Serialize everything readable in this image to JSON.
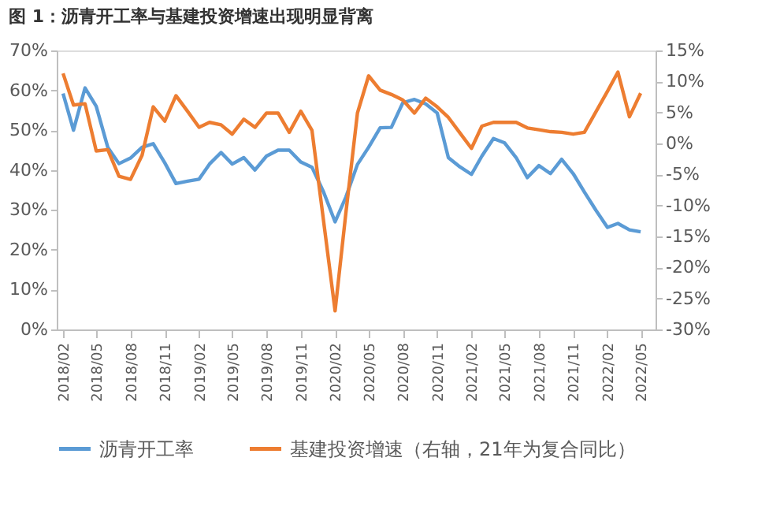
{
  "chart_data": {
    "type": "line",
    "title": "图 1：沥青开工率与基建投资增速出现明显背离",
    "xlim": [
      "2018-01-15",
      "2022-06-10"
    ],
    "xticks": [
      {
        "value": "2018-02",
        "label": "2018/02"
      },
      {
        "value": "2018-05",
        "label": "2018/05"
      },
      {
        "value": "2018-08",
        "label": "2018/08"
      },
      {
        "value": "2018-11",
        "label": "2018/11"
      },
      {
        "value": "2019-02",
        "label": "2019/02"
      },
      {
        "value": "2019-05",
        "label": "2019/05"
      },
      {
        "value": "2019-08",
        "label": "2019/08"
      },
      {
        "value": "2019-11",
        "label": "2019/11"
      },
      {
        "value": "2020-02",
        "label": "2020/02"
      },
      {
        "value": "2020-05",
        "label": "2020/05"
      },
      {
        "value": "2020-08",
        "label": "2020/08"
      },
      {
        "value": "2020-11",
        "label": "2020/11"
      },
      {
        "value": "2021-02",
        "label": "2021/02"
      },
      {
        "value": "2021-05",
        "label": "2021/05"
      },
      {
        "value": "2021-08",
        "label": "2021/08"
      },
      {
        "value": "2021-11",
        "label": "2021/11"
      },
      {
        "value": "2022-02",
        "label": "2022/02"
      },
      {
        "value": "2022-05",
        "label": "2022/05"
      }
    ],
    "ylim": [
      0,
      70
    ],
    "yticks": [
      {
        "value": 0,
        "label": "0%"
      },
      {
        "value": 10,
        "label": "10%"
      },
      {
        "value": 20,
        "label": "20%"
      },
      {
        "value": 30,
        "label": "30%"
      },
      {
        "value": 40,
        "label": "40%"
      },
      {
        "value": 50,
        "label": "50%"
      },
      {
        "value": 60,
        "label": "60%"
      },
      {
        "value": 70,
        "label": "70%"
      }
    ],
    "y2lim": [
      -30,
      15
    ],
    "y2ticks": [
      {
        "value": -30,
        "label": "-30%"
      },
      {
        "value": -25,
        "label": "-25%"
      },
      {
        "value": -20,
        "label": "-20%"
      },
      {
        "value": -15,
        "label": "-15%"
      },
      {
        "value": -10,
        "label": "-10%"
      },
      {
        "value": -5,
        "label": "-5%"
      },
      {
        "value": 0,
        "label": "0%"
      },
      {
        "value": 5,
        "label": "5%"
      },
      {
        "value": 10,
        "label": "10%"
      },
      {
        "value": 15,
        "label": "15%"
      }
    ],
    "legend": "bottom",
    "grid": false,
    "marker": "none",
    "line_style": "solid",
    "series": [
      {
        "name": "沥青开工率",
        "color": "#5b9bd5",
        "x": [
          "2018-02",
          "2018-03",
          "2018-04",
          "2018-05",
          "2018-06",
          "2018-07",
          "2018-08",
          "2018-09",
          "2018-10",
          "2018-11",
          "2018-12",
          "2019-01",
          "2019-02",
          "2019-03",
          "2019-04",
          "2019-05",
          "2019-06",
          "2019-07",
          "2019-08",
          "2019-09",
          "2019-10",
          "2019-11",
          "2019-12",
          "2020-01",
          "2020-02",
          "2020-03",
          "2020-04",
          "2020-05",
          "2020-06",
          "2020-07",
          "2020-08",
          "2020-09",
          "2020-10",
          "2020-11",
          "2020-12",
          "2021-01",
          "2021-02",
          "2021-03",
          "2021-04",
          "2021-05",
          "2021-06",
          "2021-07",
          "2021-08",
          "2021-09",
          "2021-10",
          "2021-11",
          "2021-12",
          "2022-01",
          "2022-02",
          "2022-03",
          "2022-04",
          "2022-05"
        ],
        "values": [
          59.2,
          50,
          60.6,
          56,
          45.7,
          41.6,
          43,
          45.7,
          46.6,
          41.8,
          36.6,
          37.2,
          37.7,
          41.5,
          44.4,
          41.5,
          43.1,
          40,
          43.5,
          45,
          45,
          42,
          40.7,
          34.5,
          27,
          33.2,
          41.4,
          45.7,
          50.6,
          50.7,
          56.9,
          57.7,
          56.6,
          54.3,
          43.1,
          40.8,
          38.9,
          43.5,
          47.9,
          46.8,
          43.1,
          38.1,
          41.1,
          39.1,
          42.7,
          39.1,
          34.5,
          29.9,
          25.6,
          26.6,
          25,
          24.5
        ]
      },
      {
        "name": "基建投资增速（右轴，21年为复合同比）",
        "color": "#ed7d31",
        "axis": "y2",
        "x": [
          "2018-02",
          "2018-03",
          "2018-04",
          "2018-05",
          "2018-06",
          "2018-07",
          "2018-08",
          "2018-09",
          "2018-10",
          "2018-11",
          "2018-12",
          "2019-01",
          "2019-02",
          "2019-03",
          "2019-04",
          "2019-05",
          "2019-06",
          "2019-07",
          "2019-08",
          "2019-09",
          "2019-10",
          "2019-11",
          "2019-12",
          "2020-02",
          "2020-03",
          "2020-04",
          "2020-05",
          "2020-06",
          "2020-07",
          "2020-08",
          "2020-09",
          "2020-10",
          "2020-11",
          "2020-12",
          "2021-01",
          "2021-02",
          "2021-03",
          "2021-04",
          "2021-05",
          "2021-06",
          "2021-07",
          "2021-08",
          "2021-09",
          "2021-10",
          "2021-11",
          "2021-12",
          "2022-02",
          "2022-03",
          "2022-04",
          "2022-05"
        ],
        "values": [
          11.3,
          6.2,
          6.4,
          -1.2,
          -1,
          -5.3,
          -5.8,
          -1.9,
          5.9,
          3.6,
          7.7,
          5.2,
          2.6,
          3.4,
          3,
          1.5,
          3.9,
          2.6,
          4.9,
          4.9,
          1.8,
          5.2,
          2.1,
          -27,
          -11.2,
          4.9,
          10.9,
          8.6,
          7.9,
          7,
          4.9,
          7.3,
          5.9,
          4.2,
          1.7,
          -0.8,
          2.8,
          3.4,
          3.4,
          3.4,
          2.5,
          2.2,
          1.9,
          1.8,
          1.5,
          1.8,
          8.4,
          11.5,
          4.3,
          8.1
        ]
      }
    ]
  }
}
